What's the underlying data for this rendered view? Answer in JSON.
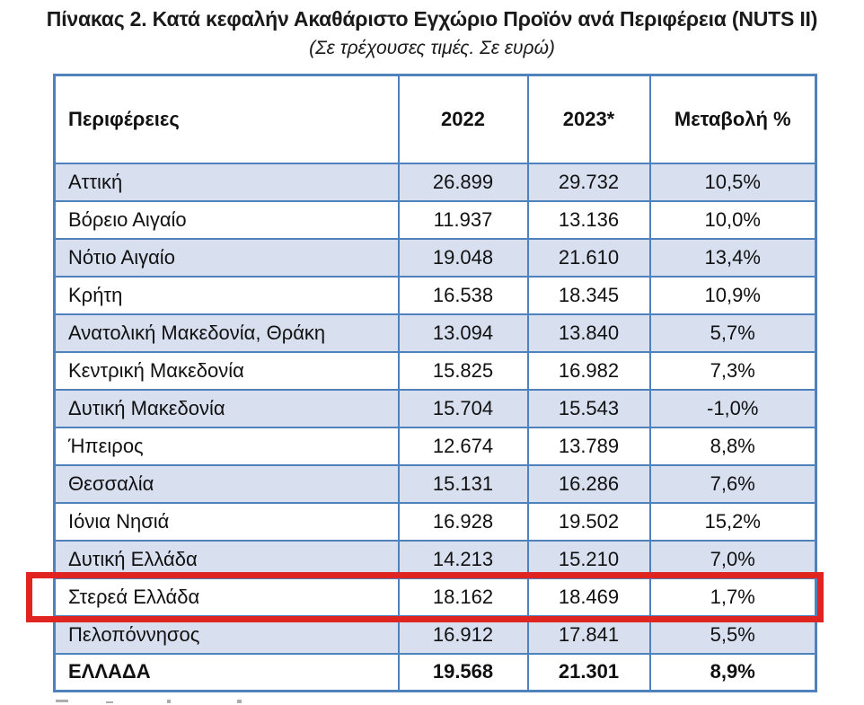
{
  "title": "Πίνακας 2. Κατά κεφαλήν Ακαθάριστο Εγχώριο Προϊόν ανά Περιφέρεια (NUTS II)",
  "subtitle": "(Σε τρέχουσες τιμές. Σε ευρώ)",
  "table": {
    "columns": [
      "Περιφέρειες",
      "2022",
      "2023*",
      "Μεταβολή %"
    ],
    "rows": [
      {
        "region": "Αττική",
        "y2022": "26.899",
        "y2023": "29.732",
        "change": "10,5%"
      },
      {
        "region": "Βόρειο Αιγαίο",
        "y2022": "11.937",
        "y2023": "13.136",
        "change": "10,0%"
      },
      {
        "region": "Νότιο Αιγαίο",
        "y2022": "19.048",
        "y2023": "21.610",
        "change": "13,4%"
      },
      {
        "region": "Κρήτη",
        "y2022": "16.538",
        "y2023": "18.345",
        "change": "10,9%"
      },
      {
        "region": "Ανατολική Μακεδονία, Θράκη",
        "y2022": "13.094",
        "y2023": "13.840",
        "change": "5,7%"
      },
      {
        "region": "Κεντρική Μακεδονία",
        "y2022": "15.825",
        "y2023": "16.982",
        "change": "7,3%"
      },
      {
        "region": "Δυτική Μακεδονία",
        "y2022": "15.704",
        "y2023": "15.543",
        "change": "-1,0%"
      },
      {
        "region": "Ήπειρος",
        "y2022": "12.674",
        "y2023": "13.789",
        "change": "8,8%"
      },
      {
        "region": "Θεσσαλία",
        "y2022": "15.131",
        "y2023": "16.286",
        "change": "7,6%"
      },
      {
        "region": "Ιόνια Νησιά",
        "y2022": "16.928",
        "y2023": "19.502",
        "change": "15,2%"
      },
      {
        "region": "Δυτική Ελλάδα",
        "y2022": "14.213",
        "y2023": "15.210",
        "change": "7,0%"
      },
      {
        "region": "Στερεά Ελλάδα",
        "y2022": "18.162",
        "y2023": "18.469",
        "change": "1,7%"
      },
      {
        "region": "Πελοπόννησος",
        "y2022": "16.912",
        "y2023": "17.841",
        "change": "5,5%"
      }
    ],
    "total": {
      "region": "ΕΛΛΑΔΑ",
      "y2022": "19.568",
      "y2023": "21.301",
      "change": "8,9%"
    },
    "highlighted_region": "Στερεά Ελλάδα"
  },
  "colors": {
    "table_border": "#4f81bd",
    "alt_row_fill": "#d8e0f0",
    "highlight_red": "#e02420",
    "text": "#1a1a1a"
  }
}
